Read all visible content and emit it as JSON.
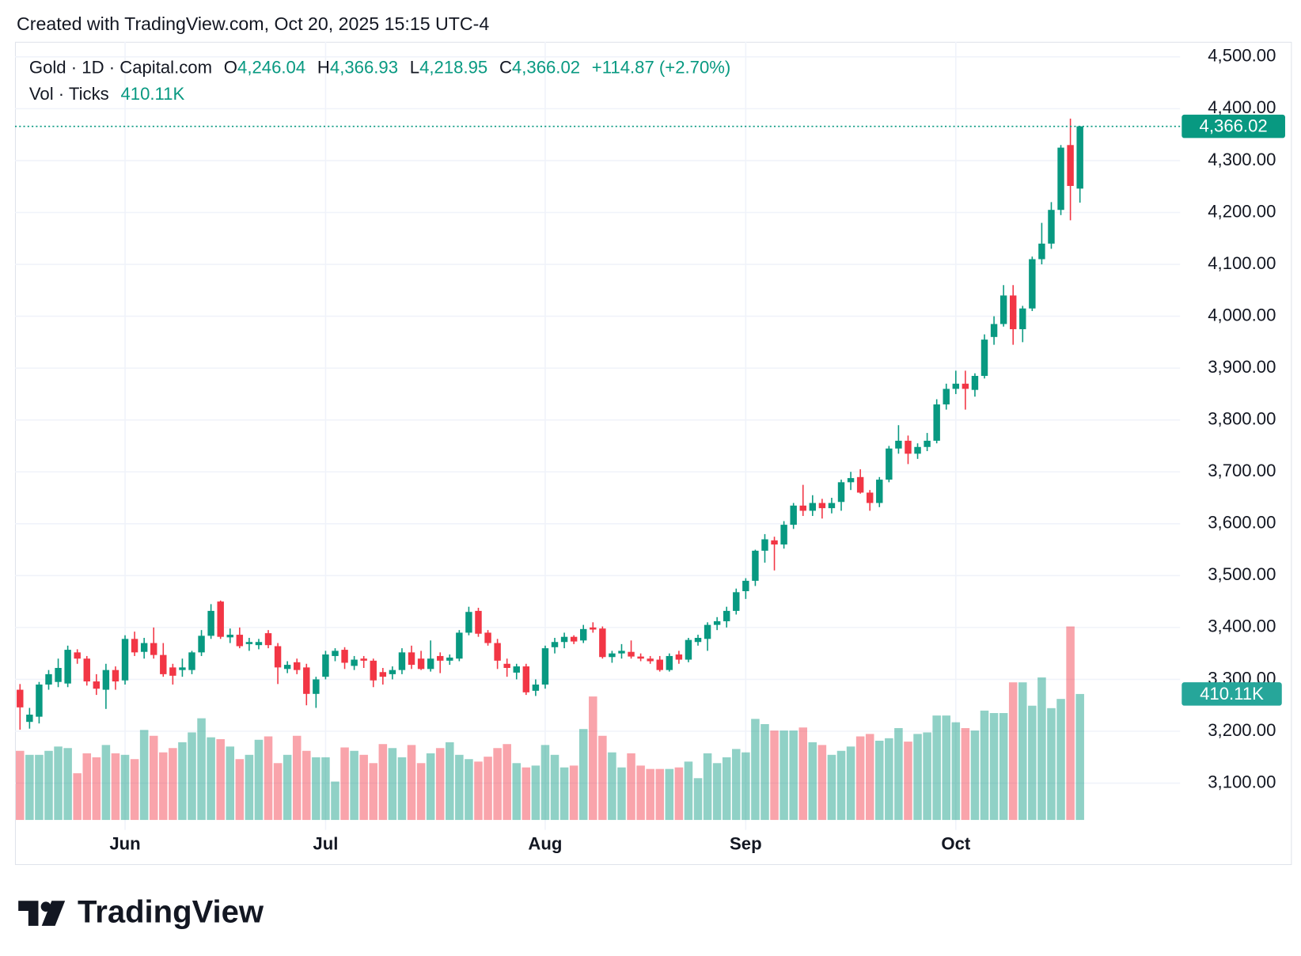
{
  "header": {
    "created": "Created with TradingView.com, Oct 20, 2025 15:15 UTC-4"
  },
  "footer": {
    "brand": "TradingView"
  },
  "chart_data": {
    "type": "candlestick",
    "legend": {
      "symbol": "Gold · 1D · Capital.com",
      "items": [
        {
          "label": "O",
          "value": "4,246.04"
        },
        {
          "label": "H",
          "value": "4,366.93"
        },
        {
          "label": "L",
          "value": "4,218.95"
        },
        {
          "label": "C",
          "value": "4,366.02"
        }
      ],
      "change": "+114.87 (+2.70%)",
      "volume_title": "Vol · Ticks",
      "volume_value": "410.11K"
    },
    "last_price_label": "4,366.02",
    "up_color": "#089981",
    "down_color": "#f23645",
    "grid": true,
    "categories": [
      null,
      null,
      null,
      null,
      null,
      null,
      null,
      null,
      null,
      null,
      null,
      "Jun",
      null,
      null,
      null,
      null,
      null,
      null,
      null,
      null,
      null,
      null,
      null,
      null,
      null,
      null,
      null,
      null,
      null,
      null,
      null,
      null,
      "Jul",
      null,
      null,
      null,
      null,
      null,
      null,
      null,
      null,
      null,
      null,
      null,
      null,
      null,
      null,
      null,
      null,
      null,
      null,
      null,
      null,
      null,
      null,
      "Aug",
      null,
      null,
      null,
      null,
      null,
      null,
      null,
      null,
      null,
      null,
      null,
      null,
      null,
      null,
      null,
      null,
      null,
      null,
      null,
      null,
      "Sep",
      null,
      null,
      null,
      null,
      null,
      null,
      null,
      null,
      null,
      null,
      null,
      null,
      null,
      null,
      null,
      null,
      null,
      null,
      null,
      null,
      null,
      "Oct",
      null,
      null,
      null,
      null,
      null,
      null,
      null,
      null,
      null,
      null,
      null,
      null,
      null
    ],
    "open": [
      3280,
      3218,
      3228,
      3290,
      3295,
      3292,
      3352,
      3340,
      3296,
      3280,
      3318,
      3298,
      3378,
      3353,
      3370,
      3347,
      3323,
      3318,
      3318,
      3352,
      3384,
      3450,
      3381,
      3386,
      3368,
      3366,
      3389,
      3364,
      3320,
      3333,
      3323,
      3272,
      3305,
      3345,
      3357,
      3326,
      3340,
      3336,
      3314,
      3310,
      3318,
      3352,
      3340,
      3320,
      3345,
      3336,
      3340,
      3390,
      3432,
      3390,
      3370,
      3330,
      3313,
      3325,
      3278,
      3290,
      3362,
      3372,
      3382,
      3375,
      3400,
      3398,
      3343,
      3350,
      3353,
      3344,
      3340,
      3338,
      3318,
      3348,
      3338,
      3372,
      3378,
      3405,
      3412,
      3432,
      3470,
      3490,
      3548,
      3568,
      3560,
      3598,
      3635,
      3625,
      3640,
      3630,
      3642,
      3680,
      3690,
      3660,
      3640,
      3685,
      3745,
      3760,
      3735,
      3748,
      3760,
      3830,
      3860,
      3870,
      3858,
      3885,
      3960,
      3985,
      4040,
      3975,
      4015,
      4110,
      4140,
      4205,
      4330,
      4246.04
    ],
    "high": [
      3291,
      3245,
      3295,
      3318,
      3340,
      3365,
      3358,
      3345,
      3310,
      3330,
      3325,
      3385,
      3392,
      3380,
      3400,
      3370,
      3330,
      3340,
      3355,
      3395,
      3445,
      3452,
      3398,
      3400,
      3380,
      3378,
      3395,
      3370,
      3335,
      3340,
      3330,
      3305,
      3355,
      3360,
      3362,
      3345,
      3345,
      3340,
      3322,
      3325,
      3360,
      3365,
      3355,
      3375,
      3352,
      3348,
      3395,
      3440,
      3438,
      3395,
      3378,
      3340,
      3330,
      3330,
      3300,
      3365,
      3380,
      3390,
      3385,
      3405,
      3410,
      3402,
      3355,
      3368,
      3375,
      3350,
      3345,
      3345,
      3350,
      3355,
      3380,
      3386,
      3410,
      3420,
      3440,
      3475,
      3495,
      3550,
      3580,
      3575,
      3605,
      3640,
      3675,
      3655,
      3648,
      3650,
      3685,
      3700,
      3705,
      3665,
      3690,
      3750,
      3790,
      3770,
      3755,
      3775,
      3840,
      3870,
      3895,
      3895,
      3890,
      3965,
      4000,
      4060,
      4060,
      4020,
      4115,
      4180,
      4220,
      4330,
      4381,
      4366.93
    ],
    "low": [
      3203,
      3205,
      3215,
      3280,
      3285,
      3285,
      3330,
      3288,
      3270,
      3243,
      3280,
      3290,
      3345,
      3340,
      3340,
      3305,
      3290,
      3305,
      3310,
      3345,
      3378,
      3378,
      3370,
      3360,
      3355,
      3358,
      3360,
      3291,
      3312,
      3310,
      3250,
      3245,
      3300,
      3335,
      3320,
      3318,
      3322,
      3285,
      3290,
      3300,
      3310,
      3320,
      3318,
      3315,
      3312,
      3328,
      3335,
      3385,
      3382,
      3365,
      3320,
      3305,
      3300,
      3270,
      3268,
      3282,
      3350,
      3360,
      3368,
      3370,
      3390,
      3340,
      3332,
      3340,
      3340,
      3335,
      3330,
      3315,
      3315,
      3330,
      3333,
      3365,
      3355,
      3395,
      3400,
      3425,
      3455,
      3480,
      3525,
      3510,
      3552,
      3590,
      3615,
      3615,
      3610,
      3620,
      3625,
      3665,
      3658,
      3625,
      3632,
      3680,
      3735,
      3715,
      3725,
      3740,
      3755,
      3820,
      3850,
      3820,
      3845,
      3880,
      3945,
      3980,
      3945,
      3950,
      4010,
      4100,
      4130,
      4195,
      4185,
      4218.95
    ],
    "close": [
      3246,
      3232,
      3290,
      3310,
      3322,
      3357,
      3340,
      3296,
      3282,
      3318,
      3296,
      3378,
      3352,
      3370,
      3347,
      3310,
      3307,
      3323,
      3352,
      3384,
      3432,
      3382,
      3386,
      3364,
      3372,
      3372,
      3366,
      3323,
      3328,
      3318,
      3272,
      3300,
      3348,
      3355,
      3332,
      3338,
      3336,
      3298,
      3305,
      3318,
      3352,
      3328,
      3320,
      3340,
      3336,
      3342,
      3390,
      3430,
      3388,
      3370,
      3336,
      3322,
      3325,
      3275,
      3290,
      3360,
      3372,
      3382,
      3373,
      3397,
      3396,
      3343,
      3350,
      3355,
      3344,
      3340,
      3335,
      3318,
      3345,
      3338,
      3376,
      3380,
      3405,
      3412,
      3432,
      3468,
      3490,
      3548,
      3570,
      3560,
      3598,
      3635,
      3625,
      3640,
      3630,
      3640,
      3680,
      3688,
      3660,
      3640,
      3685,
      3745,
      3760,
      3735,
      3748,
      3760,
      3830,
      3860,
      3870,
      3860,
      3885,
      3955,
      3985,
      4040,
      3975,
      4015,
      4110,
      4140,
      4205,
      4325,
      4251.15,
      4366.02
    ],
    "volume": [
      225,
      212,
      212,
      225,
      239,
      234,
      152,
      217,
      204,
      244,
      217,
      212,
      198,
      293,
      274,
      220,
      234,
      253,
      285,
      331,
      269,
      263,
      239,
      198,
      212,
      261,
      272,
      185,
      212,
      274,
      225,
      204,
      204,
      125,
      236,
      225,
      212,
      185,
      247,
      234,
      204,
      244,
      185,
      217,
      234,
      253,
      212,
      198,
      190,
      206,
      234,
      247,
      185,
      171,
      177,
      244,
      212,
      171,
      177,
      296,
      402,
      274,
      220,
      171,
      217,
      177,
      166,
      166,
      166,
      171,
      190,
      136,
      217,
      185,
      204,
      231,
      220,
      329,
      312,
      291,
      291,
      291,
      301,
      253,
      244,
      212,
      225,
      239,
      272,
      280,
      258,
      266,
      299,
      255,
      280,
      285,
      340,
      340,
      318,
      299,
      291,
      356,
      348,
      348,
      448,
      448,
      372,
      464,
      364,
      394,
      630,
      410.11
    ],
    "ylim": [
      3029,
      4529
    ],
    "yticks": [
      {
        "value": 3100,
        "label": "3,100.00"
      },
      {
        "value": 3200,
        "label": "3,200.00"
      },
      {
        "value": 3300,
        "label": "3,300.00"
      },
      {
        "value": 3400,
        "label": "3,400.00"
      },
      {
        "value": 3500,
        "label": "3,500.00"
      },
      {
        "value": 3600,
        "label": "3,600.00"
      },
      {
        "value": 3700,
        "label": "3,700.00"
      },
      {
        "value": 3800,
        "label": "3,800.00"
      },
      {
        "value": 3900,
        "label": "3,900.00"
      },
      {
        "value": 4000,
        "label": "4,000.00"
      },
      {
        "value": 4100,
        "label": "4,100.00"
      },
      {
        "value": 4200,
        "label": "4,200.00"
      },
      {
        "value": 4300,
        "label": "4,300.00"
      },
      {
        "value": 4400,
        "label": "4,400.00"
      },
      {
        "value": 4500,
        "label": "4,500.00"
      }
    ]
  }
}
